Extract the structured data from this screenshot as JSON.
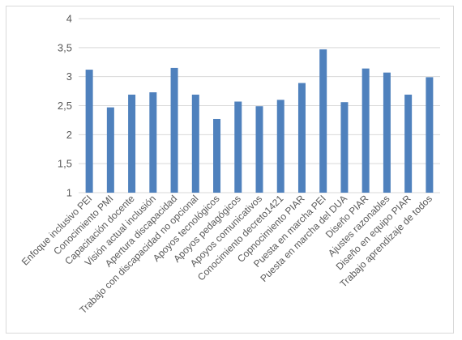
{
  "chart_data": {
    "type": "bar",
    "categories": [
      "Enfoque inclusivo PEI",
      "Conocimiento PMI",
      "Capacitación docente",
      "Visión actual inclusión",
      "Apertura discapacidad",
      "Trabajo con discapacidad no opcional",
      "Apoyos tecnológicos",
      "Apoyos pedagógicos",
      "Apoyos comunicativos",
      "Conocimiento decreto1421",
      "Copnocimiento PIAR",
      "Puesta en marcha PEI",
      "Puesta en marcha del DUA",
      "Diseño PIAR",
      "Ajustes razonables",
      "Diseño en equipo PIAR",
      "Trabajo aprendizaje de todos"
    ],
    "values": [
      3.12,
      2.47,
      2.69,
      2.73,
      3.15,
      2.69,
      2.27,
      2.57,
      2.49,
      2.6,
      2.89,
      3.47,
      2.56,
      3.14,
      3.07,
      2.69,
      2.99
    ],
    "ylim": [
      1,
      4
    ],
    "yticks": [
      "1",
      "1,5",
      "2",
      "2,5",
      "3",
      "3,5",
      "4"
    ],
    "ytick_values": [
      1,
      1.5,
      2,
      2.5,
      3,
      3.5,
      4
    ],
    "grid": true,
    "legend": "none",
    "bar_color": "#4f81bd",
    "grid_color": "#d9d9d9",
    "title": "",
    "xlabel": "",
    "ylabel": ""
  }
}
